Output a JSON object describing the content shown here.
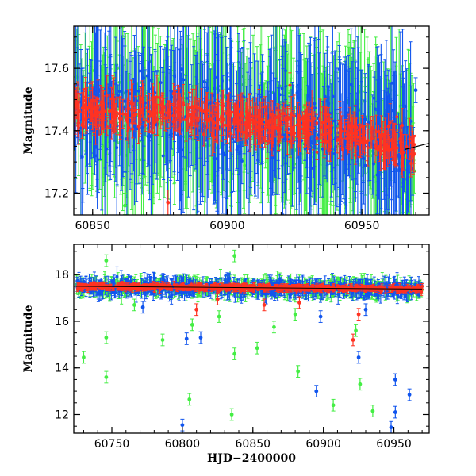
{
  "colors": {
    "green": "#44ee44",
    "blue": "#1155ee",
    "red": "#ff3322",
    "model": "#000000"
  },
  "chart_data": [
    {
      "type": "scatter",
      "panel": "top",
      "title": "",
      "xlabel": "",
      "ylabel": "Magnitude",
      "xlim": [
        60843,
        60975
      ],
      "ylim": [
        17.735,
        17.13
      ],
      "y_inverted": true,
      "grid": false,
      "x_ticks": [
        60850,
        60900,
        60950
      ],
      "x_tick_labels": [
        "60850",
        "60900",
        "60950"
      ],
      "y_ticks": [
        17.2,
        17.4,
        17.6
      ],
      "y_tick_labels": [
        "17.2",
        "17.4",
        "17.6"
      ],
      "trend": {
        "description": "slow brightening trend",
        "x": [
          60843,
          60880,
          60920,
          60950,
          60970
        ],
        "y": [
          17.47,
          17.46,
          17.42,
          17.38,
          17.34
        ]
      },
      "model_line": {
        "x": [
          60966,
          60975
        ],
        "y": [
          17.34,
          17.36
        ]
      },
      "series_colors": [
        "green",
        "blue",
        "red"
      ],
      "point_density": "very dense, thousands of points with error bars",
      "outliers": [
        {
          "series": "blue",
          "x": 60970,
          "y": 17.53
        },
        {
          "series": "green",
          "x": 60862,
          "y": 17.16
        },
        {
          "series": "red",
          "x": 60878,
          "y": 17.17
        }
      ]
    },
    {
      "type": "scatter",
      "panel": "bottom",
      "title": "",
      "xlabel": "HJD−2400000",
      "ylabel": "Magnitude",
      "xlim": [
        60723,
        60975
      ],
      "ylim": [
        19.3,
        11.2
      ],
      "y_inverted": true,
      "grid": false,
      "x_ticks": [
        60750,
        60800,
        60850,
        60900,
        60950
      ],
      "x_tick_labels": [
        "60750",
        "60800",
        "60850",
        "60900",
        "60950"
      ],
      "y_ticks": [
        12,
        14,
        16,
        18
      ],
      "y_tick_labels": [
        "12",
        "14",
        "16",
        "18"
      ],
      "baseline": {
        "x": [
          60725,
          60970
        ],
        "y": [
          17.5,
          17.38
        ]
      },
      "series_colors": [
        "green",
        "blue",
        "red"
      ],
      "outliers": [
        {
          "series": "green",
          "x": 60730,
          "y": 14.45
        },
        {
          "series": "green",
          "x": 60746,
          "y": 13.6
        },
        {
          "series": "green",
          "x": 60746,
          "y": 15.3
        },
        {
          "series": "green",
          "x": 60746,
          "y": 18.6
        },
        {
          "series": "green",
          "x": 60766,
          "y": 16.7
        },
        {
          "series": "green",
          "x": 60786,
          "y": 15.2
        },
        {
          "series": "green",
          "x": 60805,
          "y": 12.65
        },
        {
          "series": "green",
          "x": 60807,
          "y": 15.85
        },
        {
          "series": "green",
          "x": 60826,
          "y": 16.2
        },
        {
          "series": "green",
          "x": 60835,
          "y": 12.0
        },
        {
          "series": "green",
          "x": 60837,
          "y": 14.6
        },
        {
          "series": "green",
          "x": 60837,
          "y": 18.8
        },
        {
          "series": "green",
          "x": 60853,
          "y": 14.85
        },
        {
          "series": "green",
          "x": 60865,
          "y": 15.75
        },
        {
          "series": "green",
          "x": 60882,
          "y": 13.85
        },
        {
          "series": "green",
          "x": 60907,
          "y": 12.4
        },
        {
          "series": "green",
          "x": 60926,
          "y": 13.3
        },
        {
          "series": "green",
          "x": 60935,
          "y": 12.15
        },
        {
          "series": "green",
          "x": 60923,
          "y": 15.6
        },
        {
          "series": "green",
          "x": 60880,
          "y": 16.3
        },
        {
          "series": "blue",
          "x": 60800,
          "y": 11.55
        },
        {
          "series": "blue",
          "x": 60803,
          "y": 15.25
        },
        {
          "series": "blue",
          "x": 60813,
          "y": 15.3
        },
        {
          "series": "blue",
          "x": 60895,
          "y": 13.0
        },
        {
          "series": "blue",
          "x": 60925,
          "y": 14.45
        },
        {
          "series": "blue",
          "x": 60948,
          "y": 11.45
        },
        {
          "series": "blue",
          "x": 60951,
          "y": 12.1
        },
        {
          "series": "blue",
          "x": 60951,
          "y": 13.5
        },
        {
          "series": "blue",
          "x": 60961,
          "y": 12.85
        },
        {
          "series": "blue",
          "x": 60772,
          "y": 16.6
        },
        {
          "series": "blue",
          "x": 60898,
          "y": 16.2
        },
        {
          "series": "blue",
          "x": 60930,
          "y": 16.5
        },
        {
          "series": "red",
          "x": 60810,
          "y": 16.5
        },
        {
          "series": "red",
          "x": 60825,
          "y": 16.95
        },
        {
          "series": "red",
          "x": 60858,
          "y": 16.7
        },
        {
          "series": "red",
          "x": 60883,
          "y": 16.8
        },
        {
          "series": "red",
          "x": 60921,
          "y": 15.2
        },
        {
          "series": "red",
          "x": 60925,
          "y": 16.3
        }
      ]
    }
  ]
}
